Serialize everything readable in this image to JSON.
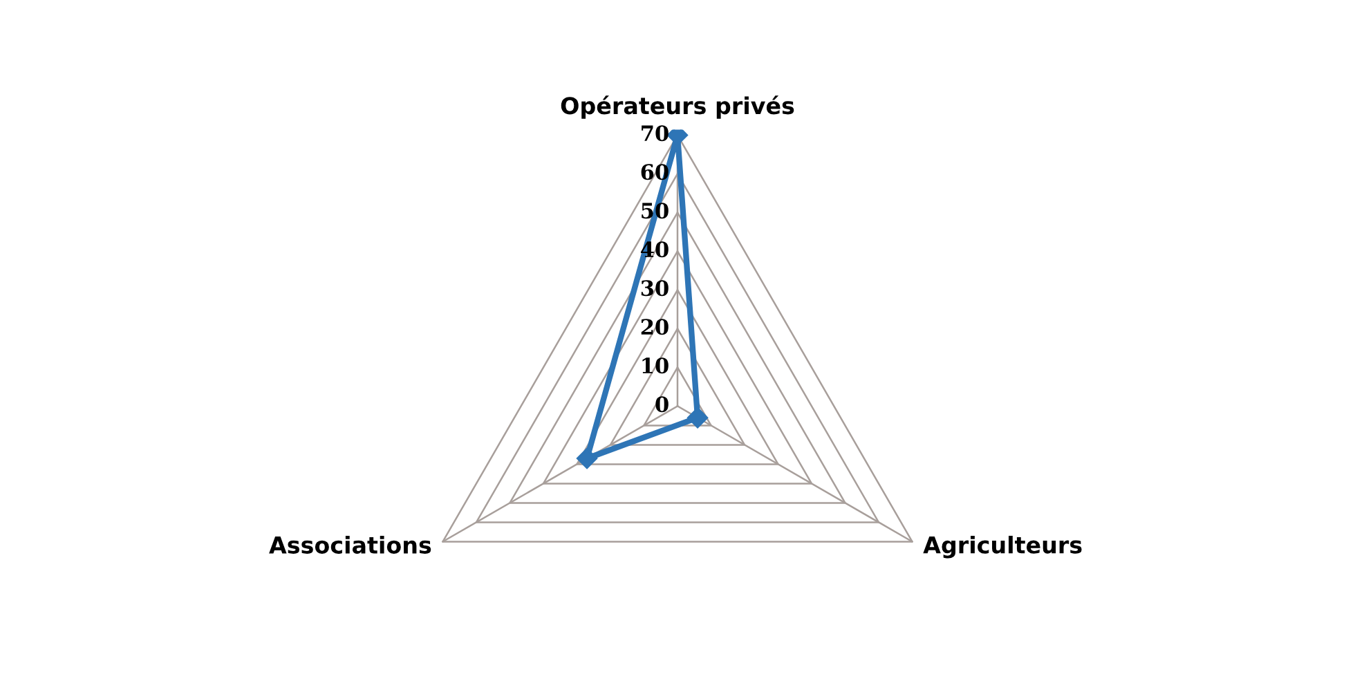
{
  "chart_data": {
    "type": "radar",
    "categories": [
      "Opérateurs privés",
      "Agriculteurs",
      "Associations"
    ],
    "series": [
      {
        "color": "#2e75b6",
        "values": [
          70,
          6,
          27
        ]
      }
    ],
    "ylim": [
      0,
      70
    ],
    "yticks": [
      0,
      10,
      20,
      30,
      40,
      50,
      60,
      70
    ],
    "marker": "diamond",
    "grid": true
  }
}
